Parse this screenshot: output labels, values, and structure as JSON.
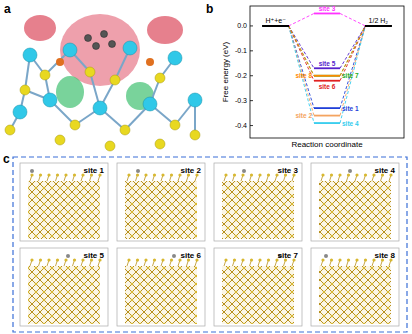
{
  "panel_labels": [
    "a",
    "b",
    "c"
  ],
  "chart_data": {
    "type": "line",
    "x_label": "Reaction coordinate",
    "y_label": "Free energy (eV)",
    "categories": [
      "H⁺+e⁻",
      null,
      "1/2 H₂"
    ],
    "ylim": [
      -0.45,
      0.08
    ],
    "yticks": [
      {
        "value": 0,
        "label": "0.0"
      },
      -0.1,
      -0.2,
      -0.3,
      -0.4
    ],
    "line_style": "dashed",
    "grid": false,
    "series": [
      {
        "name": "site 1",
        "color": "#1f3fd8",
        "values": [
          0,
          -0.33,
          0
        ]
      },
      {
        "name": "site 2",
        "color": "#f4a460",
        "values": [
          0,
          -0.36,
          0
        ]
      },
      {
        "name": "site 3",
        "color": "#ff33ff",
        "values": [
          0,
          0.05,
          0
        ]
      },
      {
        "name": "site 4",
        "color": "#33ccee",
        "values": [
          0,
          -0.39,
          0
        ]
      },
      {
        "name": "site 5",
        "color": "#5522cc",
        "values": [
          0,
          -0.17,
          0
        ]
      },
      {
        "name": "site 6",
        "color": "#e02020",
        "values": [
          0,
          -0.22,
          0
        ]
      },
      {
        "name": "site 7",
        "color": "#22aa22",
        "values": [
          0,
          -0.2,
          0
        ]
      },
      {
        "name": "site 8",
        "color": "#ff8800",
        "values": [
          0,
          -0.2,
          0
        ]
      }
    ]
  },
  "structures": [
    "site 1",
    "site 2",
    "site 3",
    "site 4",
    "site 5",
    "site 6",
    "site 7",
    "site 8"
  ]
}
